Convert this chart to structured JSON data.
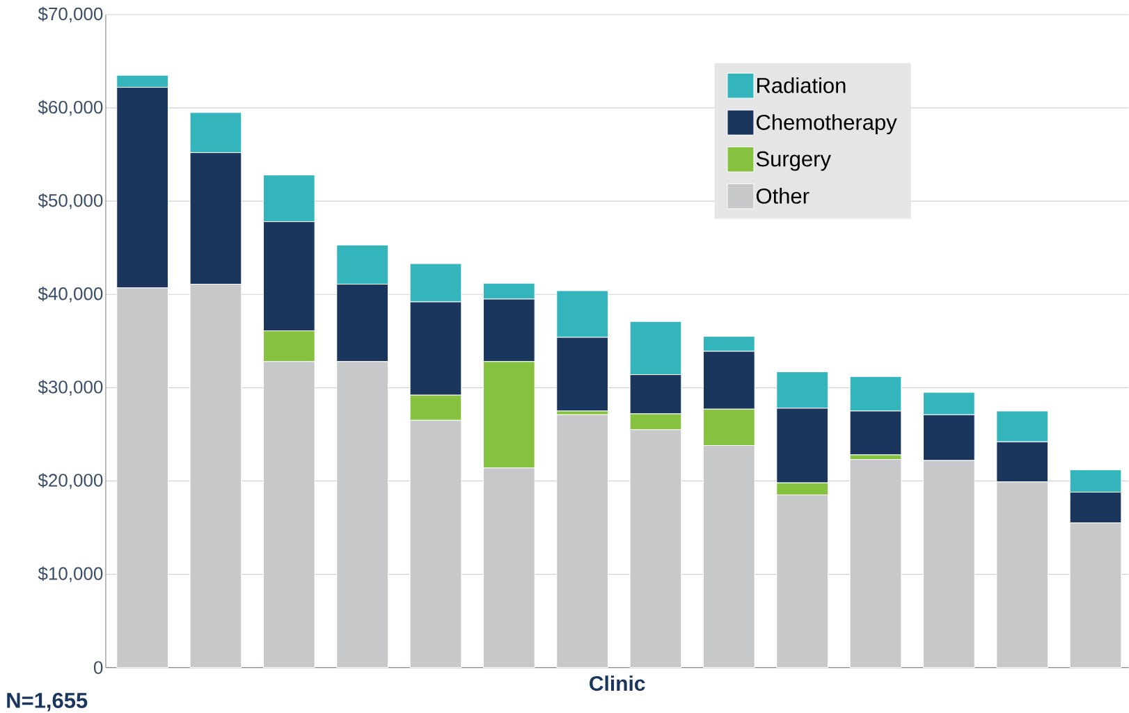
{
  "chart_data": {
    "type": "bar",
    "stacked": true,
    "categories": [
      null,
      null,
      null,
      null,
      null,
      null,
      null,
      null,
      null,
      null,
      null,
      null,
      null,
      null
    ],
    "xlabel": "Clinic",
    "annotations": [
      "N=1,655"
    ],
    "series": [
      {
        "name": "Other",
        "color": "#c7c8ca",
        "values": [
          40700,
          41100,
          32800,
          32800,
          26500,
          21400,
          27100,
          25500,
          23800,
          18500,
          22300,
          22200,
          19900,
          15500
        ]
      },
      {
        "name": "Surgery",
        "color": "#86c240",
        "values": [
          0,
          0,
          3300,
          0,
          2700,
          11400,
          400,
          1700,
          3900,
          1300,
          500,
          0,
          0,
          0
        ]
      },
      {
        "name": "Chemotherapy",
        "color": "#1b365d",
        "values": [
          21500,
          14100,
          11700,
          8300,
          10000,
          6700,
          7900,
          4200,
          6200,
          8000,
          4700,
          4900,
          4300,
          3300
        ]
      },
      {
        "name": "Radiation",
        "color": "#33b5bb",
        "values": [
          1300,
          4300,
          5000,
          4200,
          4100,
          1700,
          5000,
          5700,
          1600,
          3900,
          3700,
          2400,
          3300,
          2400
        ]
      }
    ],
    "ylim": [
      0,
      70000
    ],
    "yticks": [
      0,
      {
        "value": 10000,
        "label": "$10,000"
      },
      {
        "value": 20000,
        "label": "$20,000"
      },
      {
        "value": 30000,
        "label": "$30,000"
      },
      {
        "value": 40000,
        "label": "$40,000"
      },
      {
        "value": 50000,
        "label": "$50,000"
      },
      {
        "value": 60000,
        "label": "$60,000"
      },
      {
        "value": 70000,
        "label": "$70,000"
      }
    ],
    "grid": "y",
    "legend": "top right"
  }
}
